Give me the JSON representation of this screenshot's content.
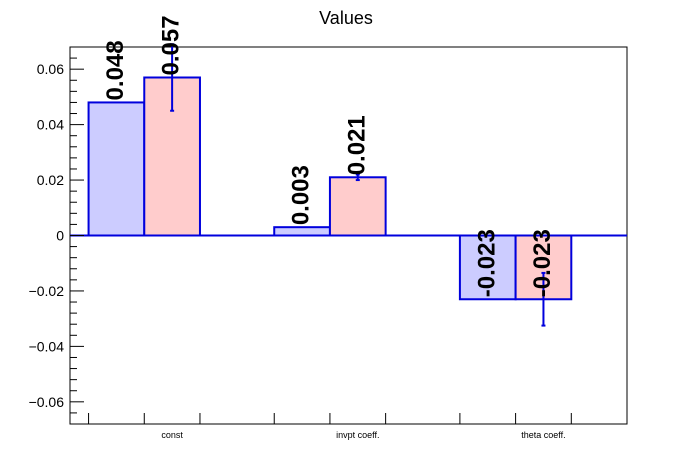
{
  "chart_data": {
    "type": "bar",
    "title": "Values",
    "xlabel": "",
    "ylabel": "",
    "categories": [
      "const",
      "invpt coeff.",
      "theta coeff."
    ],
    "ylim": [
      -0.068,
      0.068
    ],
    "yticks": [
      -0.06,
      -0.04,
      -0.02,
      0,
      0.02,
      0.04,
      0.06
    ],
    "ytick_labels": [
      "−0.06",
      "−0.04",
      "−0.02",
      "0",
      "0.02",
      "0.04",
      "0.06"
    ],
    "grid": false,
    "series": [
      {
        "values": [
          0.048,
          0.003,
          -0.023
        ],
        "labels": [
          "0.048",
          "0.003",
          "-0.023"
        ],
        "fill": "#ccccff",
        "stroke": "#0000dd"
      },
      {
        "values": [
          0.057,
          0.021,
          -0.023
        ],
        "labels": [
          "0.057",
          "0.021",
          "-0.023"
        ],
        "errors": [
          0.012,
          0.001,
          0.0095
        ],
        "fill": "#ffcccc",
        "stroke": "#0000dd"
      }
    ]
  }
}
